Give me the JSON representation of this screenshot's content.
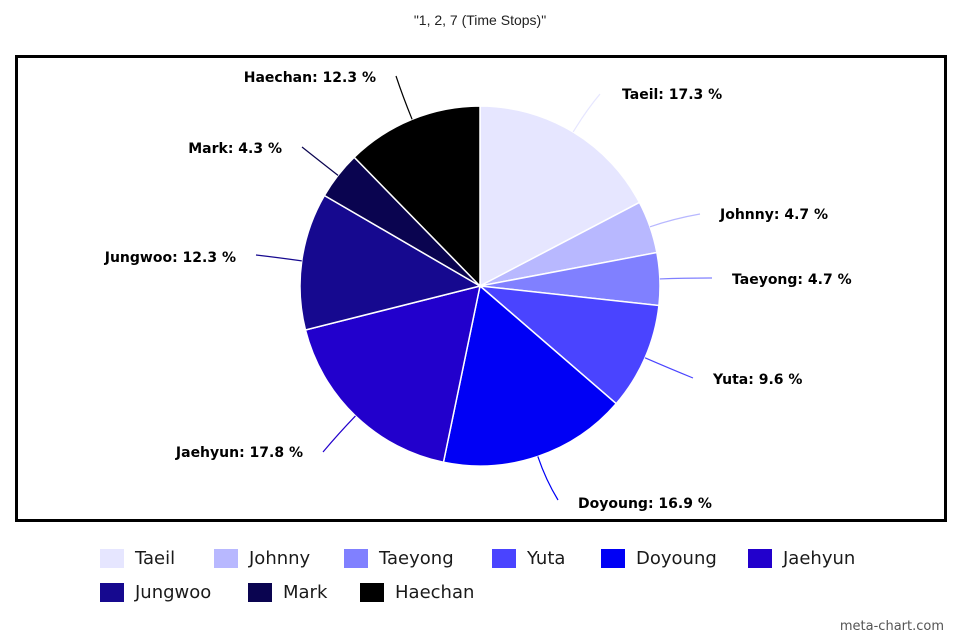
{
  "chart_data": {
    "type": "pie",
    "title": "\"1, 2, 7 (Time Stops)\"",
    "slices": [
      {
        "name": "Taeil",
        "value": 17.3,
        "label": "Taeil: 17.3 %",
        "color": "#e6e6ff"
      },
      {
        "name": "Johnny",
        "value": 4.7,
        "label": "Johnny: 4.7 %",
        "color": "#b8b8ff"
      },
      {
        "name": "Taeyong",
        "value": 4.7,
        "label": "Taeyong: 4.7 %",
        "color": "#8080ff"
      },
      {
        "name": "Yuta",
        "value": 9.6,
        "label": "Yuta: 9.6 %",
        "color": "#4a44ff"
      },
      {
        "name": "Doyoung",
        "value": 16.9,
        "label": "Doyoung: 16.9 %",
        "color": "#0000f5"
      },
      {
        "name": "Jaehyun",
        "value": 17.8,
        "label": "Jaehyun: 17.8 %",
        "color": "#2200cc"
      },
      {
        "name": "Jungwoo",
        "value": 12.3,
        "label": "Jungwoo: 12.3 %",
        "color": "#16098f"
      },
      {
        "name": "Mark",
        "value": 4.3,
        "label": "Mark: 4.3 %",
        "color": "#0a0450"
      },
      {
        "name": "Haechan",
        "value": 12.3,
        "label": "Haechan: 12.3 %",
        "color": "#000000"
      }
    ],
    "legend_position": "bottom",
    "start_angle": "12 o'clock, clockwise"
  },
  "watermark": "meta-chart.com"
}
